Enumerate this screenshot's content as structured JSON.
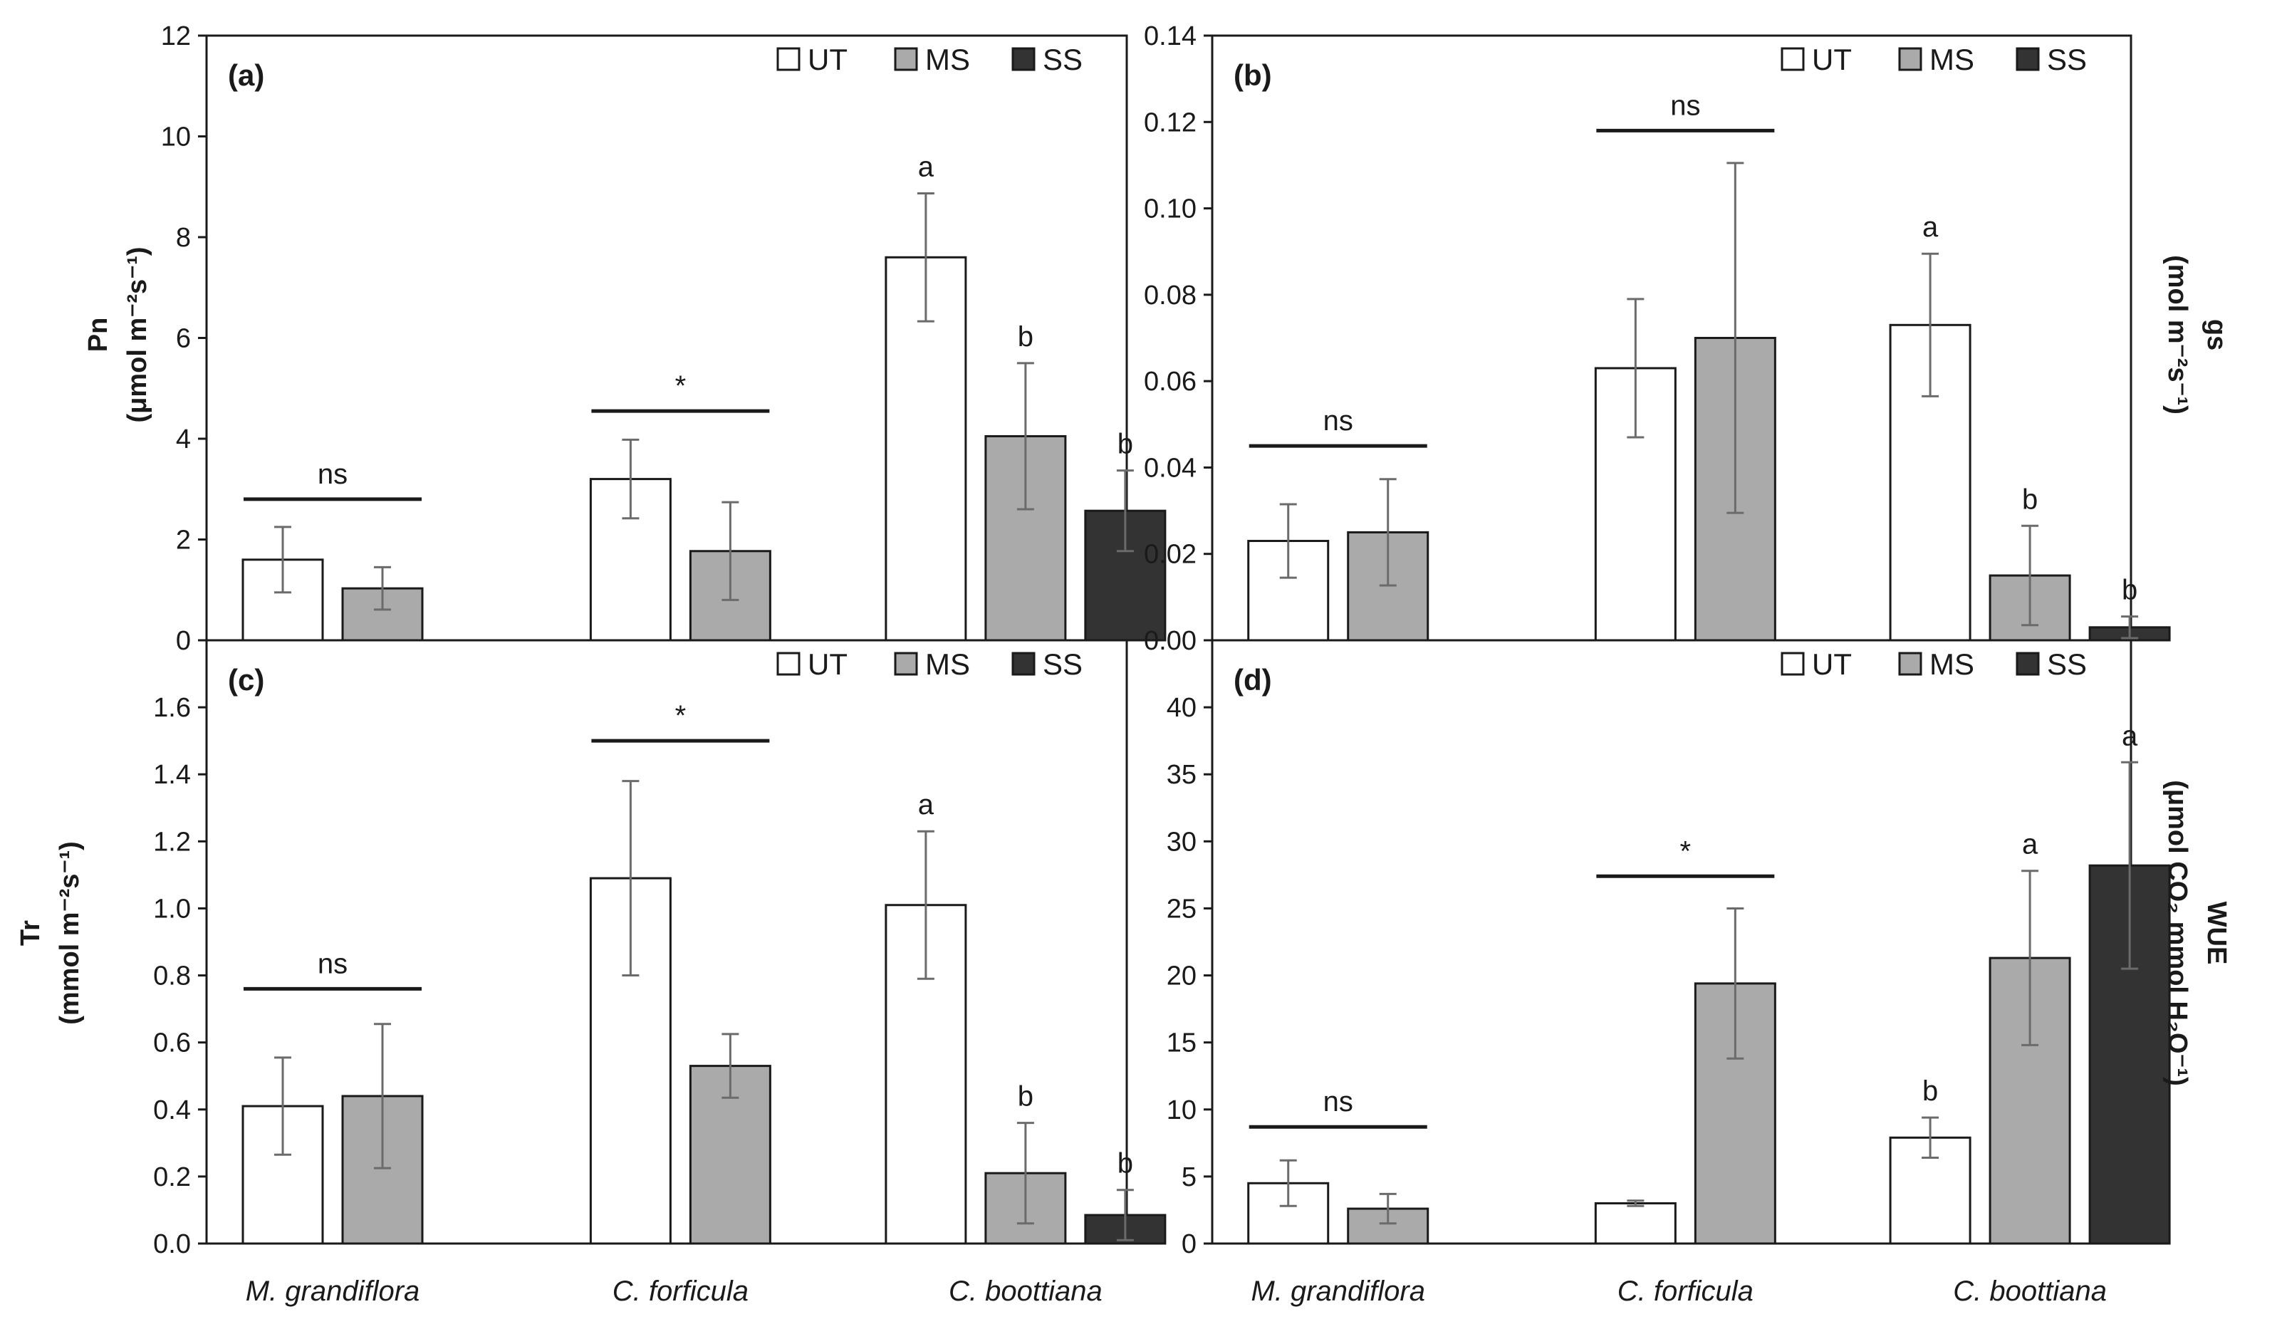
{
  "chart_data": {
    "type": "bar",
    "categories": [
      "M. grandiflora",
      "C. forficula",
      "C. boottiana"
    ],
    "treatments": [
      "UT",
      "MS",
      "SS"
    ],
    "colors": {
      "UT": "#ffffff",
      "MS": "#aaaaaa",
      "SS": "#333333"
    },
    "panels": [
      {
        "label": "(a)",
        "ylabel": [
          "Pn",
          "(μmol m⁻²s⁻¹)"
        ],
        "yaxis_side": "left",
        "ylim": [
          0,
          12
        ],
        "yticks": [
          "0",
          "2",
          "4",
          "6",
          "8",
          "10",
          "12"
        ],
        "series": [
          {
            "name": "UT",
            "values": [
              1.6,
              3.2,
              7.6
            ],
            "errors": [
              0.65,
              0.78,
              1.27
            ]
          },
          {
            "name": "MS",
            "values": [
              1.03,
              1.77,
              4.05
            ],
            "errors": [
              0.42,
              0.97,
              1.45
            ]
          },
          {
            "name": "SS",
            "values": [
              null,
              null,
              2.57
            ],
            "errors": [
              null,
              null,
              0.8
            ]
          }
        ],
        "group_annotations": [
          {
            "group": 0,
            "text": "ns",
            "y": 2.8
          },
          {
            "group": 1,
            "text": "*",
            "y": 4.55
          }
        ],
        "bar_letters": [
          {
            "series": "UT",
            "group": 2,
            "text": "a"
          },
          {
            "series": "MS",
            "group": 2,
            "text": "b"
          },
          {
            "series": "SS",
            "group": 2,
            "text": "b"
          }
        ]
      },
      {
        "label": "(b)",
        "ylabel": [
          "gs",
          "(mol m⁻²s⁻¹)"
        ],
        "yaxis_side": "right",
        "ylim": [
          0,
          0.14
        ],
        "yticks": [
          "0.00",
          "0.02",
          "0.04",
          "0.06",
          "0.08",
          "0.10",
          "0.12",
          "0.14"
        ],
        "series": [
          {
            "name": "UT",
            "values": [
              0.023,
              0.063,
              0.073
            ],
            "errors": [
              0.0085,
              0.016,
              0.0165
            ]
          },
          {
            "name": "MS",
            "values": [
              0.025,
              0.07,
              0.015
            ],
            "errors": [
              0.0123,
              0.0405,
              0.0115
            ]
          },
          {
            "name": "SS",
            "values": [
              null,
              null,
              0.003
            ],
            "errors": [
              null,
              null,
              0.0025
            ]
          }
        ],
        "group_annotations": [
          {
            "group": 0,
            "text": "ns",
            "y": 0.045
          },
          {
            "group": 1,
            "text": "ns",
            "y": 0.118
          }
        ],
        "bar_letters": [
          {
            "series": "UT",
            "group": 2,
            "text": "a"
          },
          {
            "series": "MS",
            "group": 2,
            "text": "b"
          },
          {
            "series": "SS",
            "group": 2,
            "text": "b"
          }
        ]
      },
      {
        "label": "(c)",
        "ylabel": [
          "Tr",
          "(mmol m⁻²s⁻¹)"
        ],
        "yaxis_side": "left",
        "ylim": [
          0,
          1.8
        ],
        "yticks": [
          "0.0",
          "0.2",
          "0.4",
          "0.6",
          "0.8",
          "1.0",
          "1.2",
          "1.4",
          "1.6"
        ],
        "series": [
          {
            "name": "UT",
            "values": [
              0.41,
              1.09,
              1.01
            ],
            "errors": [
              0.145,
              0.29,
              0.22
            ]
          },
          {
            "name": "MS",
            "values": [
              0.44,
              0.53,
              0.21
            ],
            "errors": [
              0.215,
              0.095,
              0.15
            ]
          },
          {
            "name": "SS",
            "values": [
              null,
              null,
              0.085
            ],
            "errors": [
              null,
              null,
              0.075
            ]
          }
        ],
        "group_annotations": [
          {
            "group": 0,
            "text": "ns",
            "y": 0.76
          },
          {
            "group": 1,
            "text": "*",
            "y": 1.5
          }
        ],
        "bar_letters": [
          {
            "series": "UT",
            "group": 2,
            "text": "a"
          },
          {
            "series": "MS",
            "group": 2,
            "text": "b"
          },
          {
            "series": "SS",
            "group": 2,
            "text": "b"
          }
        ]
      },
      {
        "label": "(d)",
        "ylabel": [
          "WUE",
          "(μmol CO₂ mmol H₂O⁻¹)"
        ],
        "yaxis_side": "right",
        "ylim": [
          0,
          45
        ],
        "yticks": [
          "0",
          "5",
          "10",
          "15",
          "20",
          "25",
          "30",
          "35",
          "40"
        ],
        "series": [
          {
            "name": "UT",
            "values": [
              4.5,
              3.0,
              7.9
            ],
            "errors": [
              1.7,
              0.2,
              1.5
            ]
          },
          {
            "name": "MS",
            "values": [
              2.6,
              19.4,
              21.3
            ],
            "errors": [
              1.1,
              5.6,
              6.5
            ]
          },
          {
            "name": "SS",
            "values": [
              null,
              null,
              28.2
            ],
            "errors": [
              null,
              null,
              7.7
            ]
          }
        ],
        "group_annotations": [
          {
            "group": 0,
            "text": "ns",
            "y": 8.7
          },
          {
            "group": 1,
            "text": "*",
            "y": 27.4
          }
        ],
        "bar_letters": [
          {
            "series": "UT",
            "group": 2,
            "text": "b"
          },
          {
            "series": "MS",
            "group": 2,
            "text": "a"
          },
          {
            "series": "SS",
            "group": 2,
            "text": "a"
          }
        ]
      }
    ]
  }
}
